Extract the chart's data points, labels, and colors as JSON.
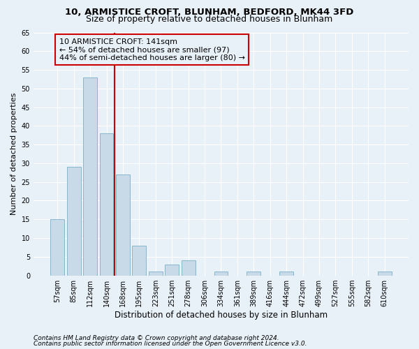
{
  "title1": "10, ARMISTICE CROFT, BLUNHAM, BEDFORD, MK44 3FD",
  "title2": "Size of property relative to detached houses in Blunham",
  "xlabel": "Distribution of detached houses by size in Blunham",
  "ylabel": "Number of detached properties",
  "categories": [
    "57sqm",
    "85sqm",
    "112sqm",
    "140sqm",
    "168sqm",
    "195sqm",
    "223sqm",
    "251sqm",
    "278sqm",
    "306sqm",
    "334sqm",
    "361sqm",
    "389sqm",
    "416sqm",
    "444sqm",
    "472sqm",
    "499sqm",
    "527sqm",
    "555sqm",
    "582sqm",
    "610sqm"
  ],
  "values": [
    15,
    29,
    53,
    38,
    27,
    8,
    1,
    3,
    4,
    0,
    1,
    0,
    1,
    0,
    1,
    0,
    0,
    0,
    0,
    0,
    1
  ],
  "bar_color": "#c8d9e8",
  "bar_edge_color": "#7aafc8",
  "vline_x_index": 3,
  "vline_color": "#cc0000",
  "annotation_lines": [
    "10 ARMISTICE CROFT: 141sqm",
    "← 54% of detached houses are smaller (97)",
    "44% of semi-detached houses are larger (80) →"
  ],
  "annotation_box_color": "#cc0000",
  "ylim": [
    0,
    65
  ],
  "yticks": [
    0,
    5,
    10,
    15,
    20,
    25,
    30,
    35,
    40,
    45,
    50,
    55,
    60,
    65
  ],
  "bg_color": "#e8f0f8",
  "grid_color": "#ffffff",
  "footer1": "Contains HM Land Registry data © Crown copyright and database right 2024.",
  "footer2": "Contains public sector information licensed under the Open Government Licence v3.0.",
  "title1_fontsize": 9.5,
  "title2_fontsize": 9,
  "xlabel_fontsize": 8.5,
  "ylabel_fontsize": 8,
  "tick_fontsize": 7,
  "annotation_fontsize": 8,
  "footer_fontsize": 6.5
}
